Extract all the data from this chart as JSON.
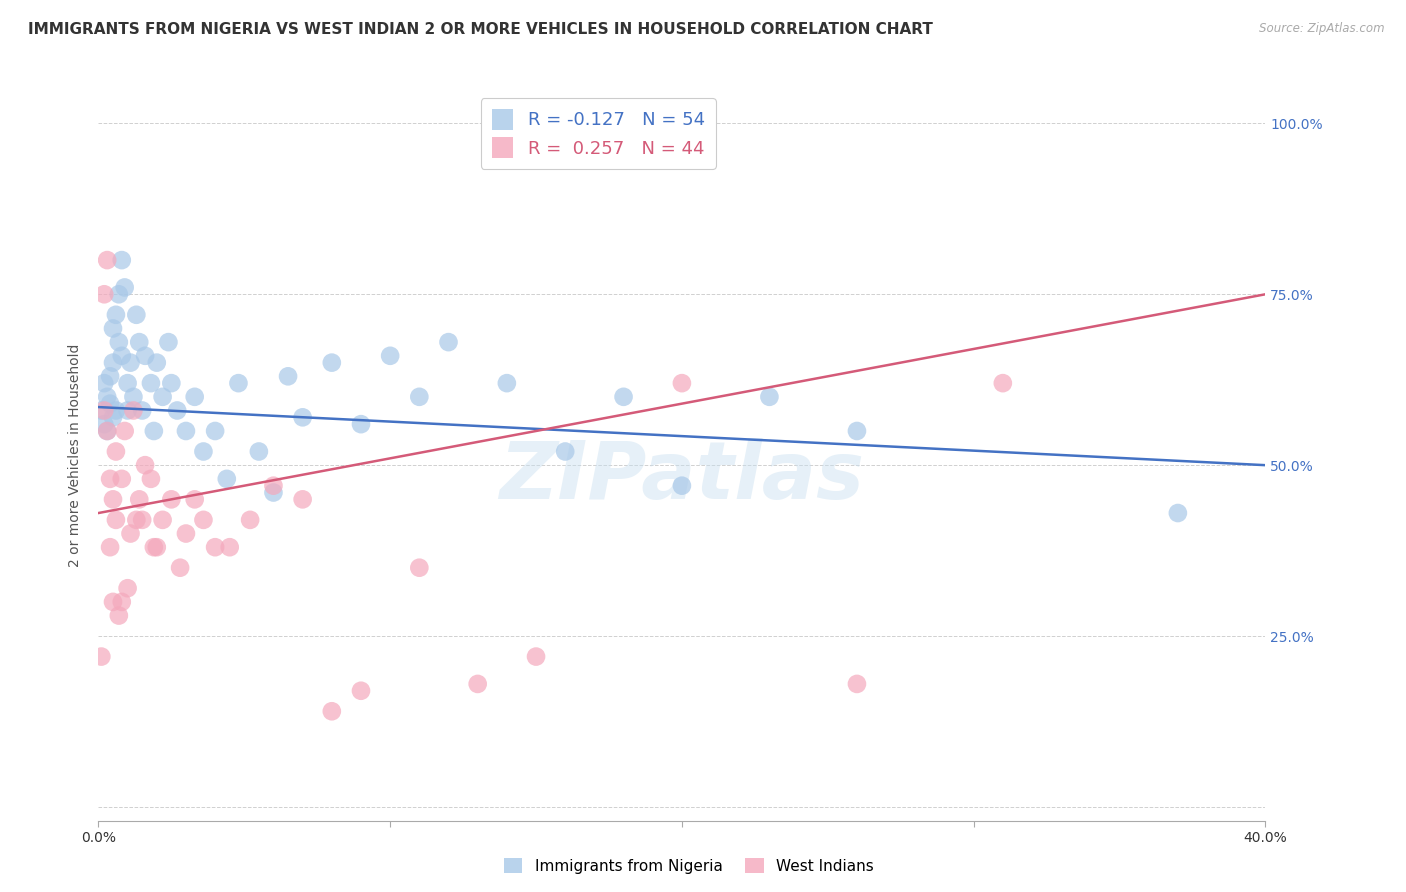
{
  "title": "IMMIGRANTS FROM NIGERIA VS WEST INDIAN 2 OR MORE VEHICLES IN HOUSEHOLD CORRELATION CHART",
  "source": "Source: ZipAtlas.com",
  "xlabel_nigeria": "Immigrants from Nigeria",
  "xlabel_westindian": "West Indians",
  "ylabel": "2 or more Vehicles in Household",
  "xlim": [
    0.0,
    0.4
  ],
  "ylim": [
    0.0,
    1.05
  ],
  "xticks": [
    0.0,
    0.1,
    0.2,
    0.3,
    0.4
  ],
  "xtick_labels": [
    "0.0%",
    "",
    "",
    "",
    "40.0%"
  ],
  "yticks": [
    0.0,
    0.25,
    0.5,
    0.75,
    1.0
  ],
  "ytick_labels": [
    "",
    "25.0%",
    "50.0%",
    "75.0%",
    "100.0%"
  ],
  "nigeria_R": -0.127,
  "nigeria_N": 54,
  "westindian_R": 0.257,
  "westindian_N": 44,
  "nigeria_color": "#a8c8e8",
  "westindian_color": "#f4a8bc",
  "nigeria_line_color": "#4472c4",
  "westindian_line_color": "#d45a78",
  "nigeria_x": [
    0.001,
    0.002,
    0.002,
    0.003,
    0.003,
    0.004,
    0.004,
    0.005,
    0.005,
    0.005,
    0.006,
    0.006,
    0.007,
    0.007,
    0.008,
    0.008,
    0.009,
    0.01,
    0.01,
    0.011,
    0.012,
    0.013,
    0.014,
    0.015,
    0.016,
    0.018,
    0.019,
    0.02,
    0.022,
    0.024,
    0.025,
    0.027,
    0.03,
    0.033,
    0.036,
    0.04,
    0.044,
    0.048,
    0.055,
    0.06,
    0.065,
    0.07,
    0.08,
    0.09,
    0.1,
    0.11,
    0.12,
    0.14,
    0.16,
    0.18,
    0.2,
    0.23,
    0.26,
    0.37
  ],
  "nigeria_y": [
    0.58,
    0.56,
    0.62,
    0.6,
    0.55,
    0.63,
    0.59,
    0.57,
    0.65,
    0.7,
    0.72,
    0.58,
    0.75,
    0.68,
    0.66,
    0.8,
    0.76,
    0.62,
    0.58,
    0.65,
    0.6,
    0.72,
    0.68,
    0.58,
    0.66,
    0.62,
    0.55,
    0.65,
    0.6,
    0.68,
    0.62,
    0.58,
    0.55,
    0.6,
    0.52,
    0.55,
    0.48,
    0.62,
    0.52,
    0.46,
    0.63,
    0.57,
    0.65,
    0.56,
    0.66,
    0.6,
    0.68,
    0.62,
    0.52,
    0.6,
    0.47,
    0.6,
    0.55,
    0.43
  ],
  "westindian_x": [
    0.001,
    0.002,
    0.002,
    0.003,
    0.003,
    0.004,
    0.004,
    0.005,
    0.005,
    0.006,
    0.006,
    0.007,
    0.008,
    0.008,
    0.009,
    0.01,
    0.011,
    0.012,
    0.013,
    0.014,
    0.015,
    0.016,
    0.018,
    0.019,
    0.02,
    0.022,
    0.025,
    0.028,
    0.03,
    0.033,
    0.036,
    0.04,
    0.045,
    0.052,
    0.06,
    0.07,
    0.08,
    0.09,
    0.11,
    0.13,
    0.15,
    0.2,
    0.26,
    0.31
  ],
  "westindian_y": [
    0.22,
    0.58,
    0.75,
    0.8,
    0.55,
    0.48,
    0.38,
    0.45,
    0.3,
    0.52,
    0.42,
    0.28,
    0.48,
    0.3,
    0.55,
    0.32,
    0.4,
    0.58,
    0.42,
    0.45,
    0.42,
    0.5,
    0.48,
    0.38,
    0.38,
    0.42,
    0.45,
    0.35,
    0.4,
    0.45,
    0.42,
    0.38,
    0.38,
    0.42,
    0.47,
    0.45,
    0.14,
    0.17,
    0.35,
    0.18,
    0.22,
    0.62,
    0.18,
    0.62
  ],
  "nig_line_x0": 0.0,
  "nig_line_y0": 0.585,
  "nig_line_x1": 0.4,
  "nig_line_y1": 0.5,
  "wi_line_x0": 0.0,
  "wi_line_y0": 0.43,
  "wi_line_x1": 0.4,
  "wi_line_y1": 0.75,
  "watermark_text": "ZIPatlas",
  "background_color": "#ffffff",
  "grid_color": "#d0d0d0",
  "title_fontsize": 11,
  "axis_label_fontsize": 10,
  "tick_label_fontsize": 10,
  "legend_fontsize": 13
}
